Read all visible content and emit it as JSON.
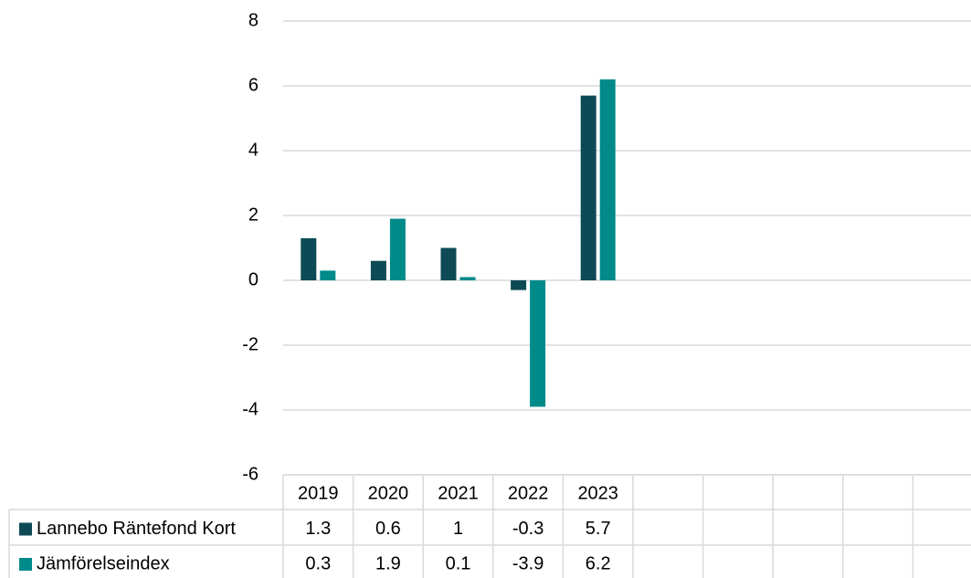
{
  "chart_data": {
    "type": "bar",
    "categories": [
      "2019",
      "2020",
      "2021",
      "2022",
      "2023",
      null,
      null,
      null,
      null,
      null
    ],
    "series": [
      {
        "name": "Lannebo Räntefond Kort",
        "color": "#0e4a55",
        "values": [
          1.3,
          0.6,
          1,
          -0.3,
          5.7,
          null,
          null,
          null,
          null,
          null
        ]
      },
      {
        "name": "Jämförelseindex",
        "color": "#008a8a",
        "values": [
          0.3,
          1.9,
          0.1,
          -3.9,
          6.2,
          null,
          null,
          null,
          null,
          null
        ]
      }
    ],
    "ylim": [
      -6,
      8
    ],
    "yticks": [
      -6,
      -4,
      -2,
      0,
      2,
      4,
      6,
      8
    ],
    "grid": true,
    "data_table": true
  }
}
